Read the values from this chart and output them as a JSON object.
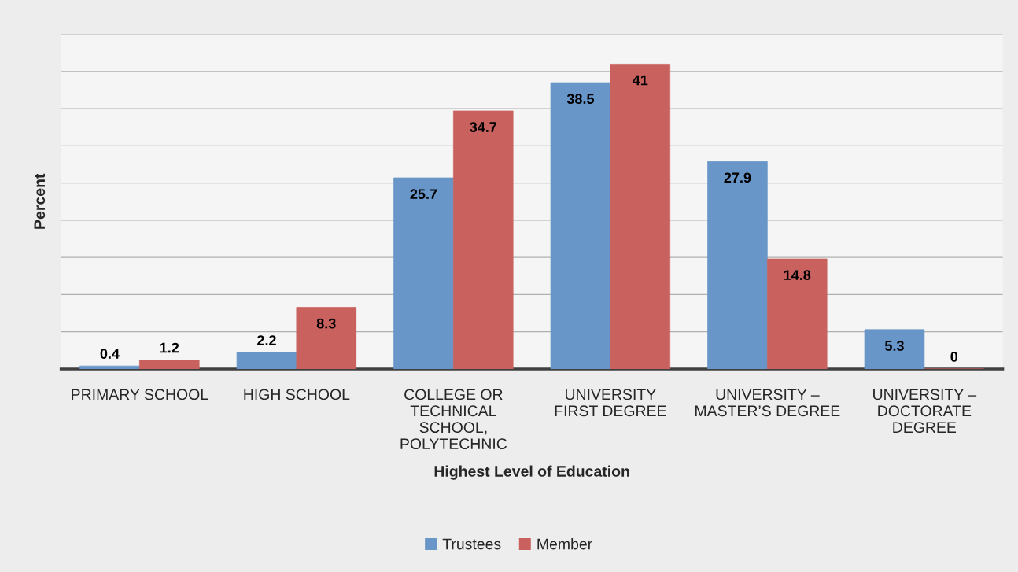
{
  "chart_data": {
    "type": "bar",
    "xlabel": "Highest Level of Education",
    "ylabel": "Percent",
    "categories": [
      "PRIMARY SCHOOL",
      "HIGH SCHOOL",
      "COLLEGE OR TECHNICAL SCHOOL, POLYTECHNIC",
      "UNIVERSITY FIRST DEGREE",
      "UNIVERSITY – MASTER’S DEGREE",
      "UNIVERSITY – DOCTORATE DEGREE"
    ],
    "series": [
      {
        "name": "Trustees",
        "color": "#6996c9",
        "values": [
          0.4,
          2.2,
          25.7,
          38.5,
          27.9,
          5.3
        ]
      },
      {
        "name": "Member",
        "color": "#c9625f",
        "values": [
          1.2,
          8.3,
          34.7,
          41,
          14.8,
          0
        ]
      }
    ],
    "ylim": [
      0,
      45
    ],
    "yticks": [
      {
        "value": 0,
        "label": null
      },
      {
        "value": 5,
        "label": null
      },
      {
        "value": 10,
        "label": null
      },
      {
        "value": 15,
        "label": null
      },
      {
        "value": 20,
        "label": null
      },
      {
        "value": 25,
        "label": null
      },
      {
        "value": 30,
        "label": null
      },
      {
        "value": 35,
        "label": null
      },
      {
        "value": 40,
        "label": null
      },
      {
        "value": 45,
        "label": null
      }
    ],
    "tick_labels": "x",
    "grid": "y",
    "legend": "bottom",
    "data_labels": true
  }
}
